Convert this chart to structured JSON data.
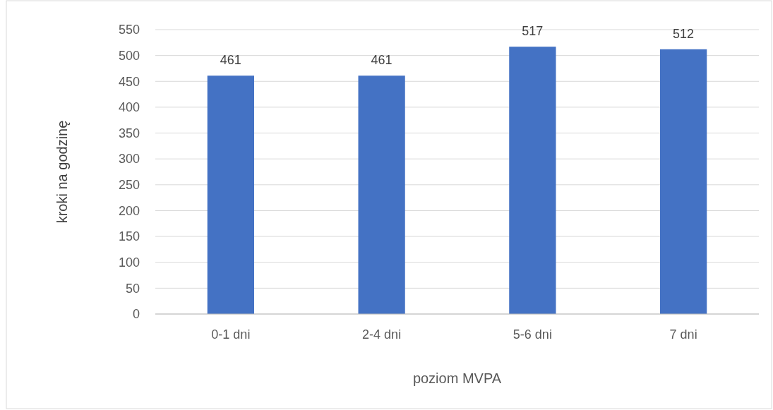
{
  "chart_data": {
    "type": "bar",
    "xlabel": "poziom MVPA",
    "ylabel": "kroki na godzinę",
    "categories": [
      "0-1 dni",
      "2-4 dni",
      "5-6 dni",
      "7 dni"
    ],
    "values": [
      461,
      461,
      517,
      512
    ],
    "color": "#4472c4",
    "ylim": [
      0,
      550
    ],
    "yticks": [
      0,
      50,
      100,
      150,
      200,
      250,
      300,
      350,
      400,
      450,
      500,
      550
    ],
    "grid": "y",
    "data_labels": true
  }
}
